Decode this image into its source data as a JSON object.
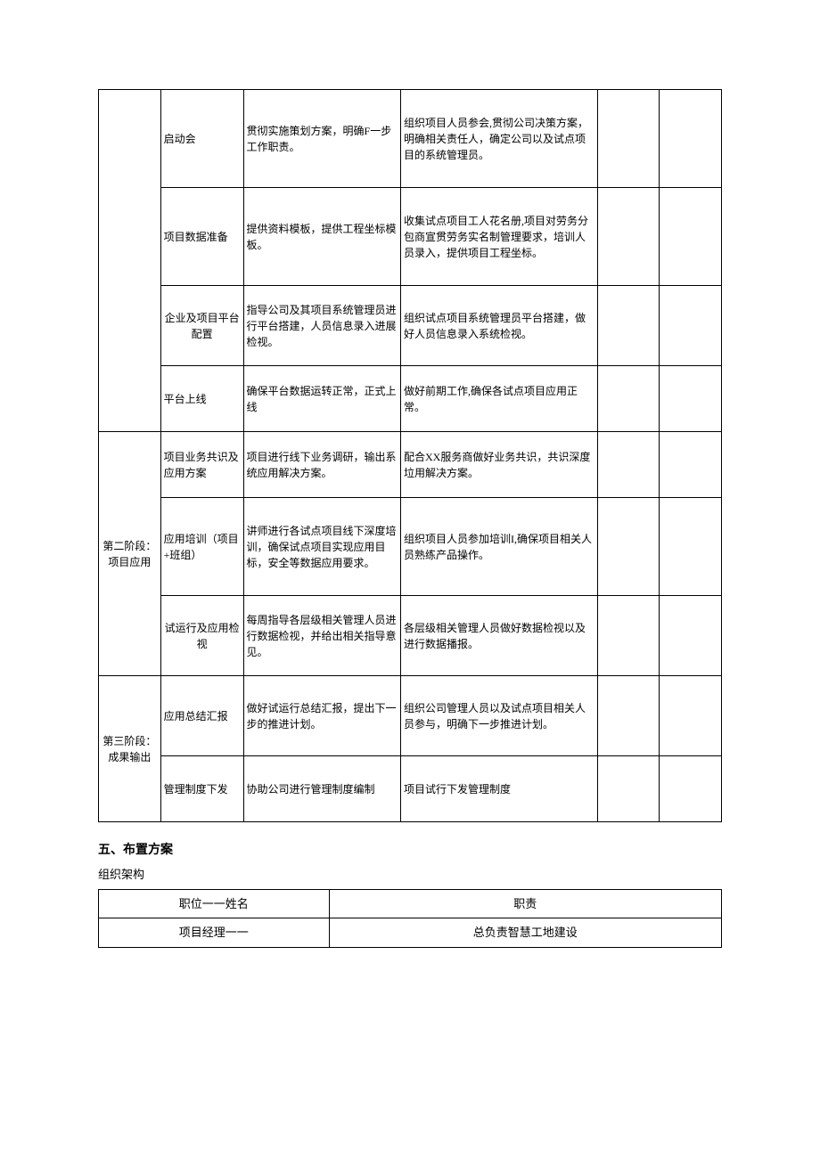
{
  "main_table": {
    "stages": [
      {
        "stage_label": "",
        "rows": [
          {
            "step": "启动会",
            "desc1": "贯彻实施策划方案，明确F一步工作职责。",
            "desc2": "组织项目人员参会,贯彻公司决策方案，明确相关责任人，确定公司以及试点项目的系统管理员。",
            "height_class": "tall-row"
          },
          {
            "step": "项目数据准备",
            "desc1": "提供资料模板，提供工程坐标模板。",
            "desc2": "收集试点项目工人花名册,项目对劳务分包商宣贯劳务实名制管理要求，培训人员录入，提供项目工程坐标。",
            "height_class": "tall-row"
          },
          {
            "step": "企业及项目平台配置",
            "desc1": "指导公司及其项目系统管理员进行平台搭建，人员信息录入进展检视。",
            "desc2": "组织试点项目系统管理员平台搭建，做好人员信息录入系统检视。",
            "height_class": "med-row"
          },
          {
            "step": "平台上线",
            "desc1": "确保平台数据运转正常，正式上线",
            "desc2": "做好前期工作,确保各试点项目应用正常。",
            "height_class": "short-row"
          }
        ]
      },
      {
        "stage_label": "第二阶段：项目应用",
        "rows": [
          {
            "step": "项目业务共识及应用方案",
            "desc1": "项目进行线下业务调研，输出系统应用解决方案。",
            "desc2": "配合XX服务商做好业务共识，共识深度垃用解决方案。",
            "height_class": "short-row"
          },
          {
            "step": "应用培训（项目+班组）",
            "desc1": "讲师进行各试点项目线下深度培训，确保试点项目实现应用目标，安全等数据应用要求。",
            "desc2": "组织项目人员参加培训I,确保项目相关人员熟练产品操作。",
            "height_class": "tall-row"
          },
          {
            "step": "试运行及应用检视",
            "desc1": "每周指导各层级相关管理人员进行数据检视，并给出相关指导意见。",
            "desc2": "各层级相关管理人员做好数据检视以及进行数据播报。",
            "height_class": "med-row"
          }
        ]
      },
      {
        "stage_label": "第三阶段：成果输出",
        "rows": [
          {
            "step": "应用总结汇报",
            "desc1": "做好试运行总结汇报，提出下一步的推进计划。",
            "desc2": "组织公司管理人员以及试点项目相关人员参与，明确下一步推进计划。",
            "height_class": "med-row"
          },
          {
            "step": "管理制度下发",
            "desc1": "协助公司进行管理制度编制",
            "desc2": "项目试行下发管理制度",
            "height_class": "short-row"
          }
        ]
      }
    ]
  },
  "section5": {
    "heading": "五、布置方案",
    "sub_heading": "组织架构",
    "org_table": {
      "header": {
        "role": "职位一一姓名",
        "duty": "职责"
      },
      "rows": [
        {
          "role": "项目经理一一",
          "duty": "总负责智慧工地建设"
        }
      ]
    }
  },
  "colors": {
    "text": "#000000",
    "border": "#000000",
    "background": "#ffffff"
  }
}
